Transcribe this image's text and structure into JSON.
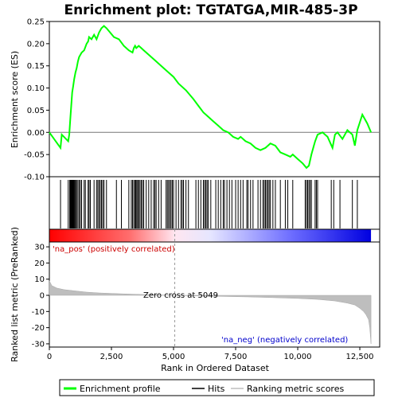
{
  "chart_data": {
    "type": "line",
    "title": "Enrichment plot: TGTATGA,MIR-485-3P",
    "top_panel": {
      "ylabel": "Enrichment score (ES)",
      "ylim": [
        -0.1,
        0.25
      ],
      "yticks": [
        -0.1,
        -0.05,
        0.0,
        0.05,
        0.1,
        0.15,
        0.2,
        0.25
      ],
      "ytick_labels": [
        "-0.10",
        "-0.05",
        "0.00",
        "0.05",
        "0.10",
        "0.15",
        "0.20",
        "0.25"
      ],
      "grid": false
    },
    "bottom_panel": {
      "ylabel": "Ranked list metric (PreRanked)",
      "ylim": [
        -32,
        33
      ],
      "yticks": [
        -30,
        -20,
        -10,
        0,
        10,
        20,
        30
      ],
      "ytick_labels": [
        "-30",
        "-20",
        "-10",
        "0",
        "10",
        "20",
        "30"
      ],
      "annotations": {
        "pos": "'na_pos' (positively correlated)",
        "neg": "'na_neg' (negatively correlated)",
        "zero_cross": "Zero cross at 5049"
      },
      "zero_cross": 5049
    },
    "xlabel": "Rank in Ordered Dataset",
    "xlim": [
      0,
      13300
    ],
    "xticks": [
      0,
      2500,
      5000,
      7500,
      10000,
      12500
    ],
    "xtick_labels": [
      "0",
      "2,500",
      "5,000",
      "7,500",
      "10,000",
      "12,500"
    ],
    "dataset_size": 12950,
    "series": [
      {
        "name": "Enrichment profile",
        "color": "#00ff00",
        "x": [
          0,
          450,
          500,
          760,
          800,
          850,
          880,
          920,
          960,
          1000,
          1050,
          1100,
          1150,
          1200,
          1300,
          1400,
          1500,
          1560,
          1600,
          1700,
          1800,
          1900,
          2000,
          2100,
          2200,
          2300,
          2450,
          2600,
          2800,
          3000,
          3200,
          3350,
          3400,
          3450,
          3500,
          3600,
          3700,
          3800,
          4000,
          4300,
          4600,
          4800,
          5000,
          5200,
          5500,
          5800,
          6000,
          6200,
          6400,
          6600,
          6800,
          7000,
          7200,
          7400,
          7600,
          7700,
          7900,
          8100,
          8300,
          8500,
          8700,
          8800,
          8900,
          9100,
          9300,
          9500,
          9700,
          9800,
          10000,
          10200,
          10350,
          10450,
          10550,
          10650,
          10700,
          10800,
          11000,
          11200,
          11400,
          11500,
          11600,
          11800,
          12000,
          12200,
          12300,
          12400,
          12600,
          12800,
          12950
        ],
        "y": [
          0.0,
          -0.035,
          -0.005,
          -0.02,
          -0.005,
          0.035,
          0.06,
          0.09,
          0.105,
          0.12,
          0.135,
          0.145,
          0.16,
          0.17,
          0.18,
          0.185,
          0.2,
          0.205,
          0.215,
          0.21,
          0.22,
          0.21,
          0.225,
          0.235,
          0.24,
          0.235,
          0.225,
          0.215,
          0.21,
          0.195,
          0.185,
          0.18,
          0.19,
          0.195,
          0.19,
          0.195,
          0.19,
          0.185,
          0.175,
          0.16,
          0.145,
          0.135,
          0.125,
          0.11,
          0.095,
          0.075,
          0.06,
          0.045,
          0.035,
          0.025,
          0.015,
          0.005,
          0.0,
          -0.01,
          -0.015,
          -0.01,
          -0.02,
          -0.025,
          -0.035,
          -0.04,
          -0.035,
          -0.03,
          -0.025,
          -0.03,
          -0.045,
          -0.05,
          -0.055,
          -0.05,
          -0.06,
          -0.07,
          -0.08,
          -0.075,
          -0.05,
          -0.03,
          -0.02,
          -0.005,
          0.0,
          -0.01,
          -0.035,
          -0.005,
          0.0,
          -0.015,
          0.005,
          -0.005,
          -0.03,
          0.005,
          0.04,
          0.02,
          0.0
        ]
      },
      {
        "name": "Hits",
        "color": "#000000",
        "positions": [
          450,
          760,
          820,
          850,
          880,
          900,
          920,
          940,
          960,
          980,
          1000,
          1030,
          1060,
          1100,
          1150,
          1200,
          1250,
          1300,
          1400,
          1450,
          1560,
          1600,
          1650,
          1800,
          1900,
          1950,
          2000,
          2050,
          2100,
          2150,
          2200,
          2300,
          2700,
          2900,
          3200,
          3300,
          3350,
          3400,
          3450,
          3480,
          3520,
          3560,
          3600,
          3650,
          3700,
          3750,
          3800,
          3900,
          4000,
          4100,
          4200,
          4250,
          4300,
          4400,
          4500,
          4700,
          4750,
          4800,
          4850,
          4900,
          4950,
          5000,
          5100,
          5200,
          5300,
          5350,
          5400,
          5500,
          5600,
          5900,
          6000,
          6100,
          6200,
          6250,
          6300,
          6350,
          6400,
          6500,
          6700,
          6800,
          6900,
          7000,
          7050,
          7150,
          7250,
          7350,
          7500,
          7600,
          7700,
          7800,
          7950,
          8000,
          8100,
          8200,
          8400,
          8500,
          8600,
          8650,
          8700,
          8750,
          8800,
          8850,
          8900,
          9000,
          9100,
          9300,
          9500,
          9600,
          9800,
          10300,
          10350,
          10400,
          10450,
          10500,
          10550,
          10700,
          10750,
          10800,
          11350,
          11450,
          11700,
          12200,
          12400
        ]
      },
      {
        "name": "Ranking metric scores",
        "color": "#bebebe",
        "x": [
          0,
          100,
          300,
          600,
          1000,
          1500,
          2000,
          3000,
          4000,
          5049,
          6000,
          7000,
          8000,
          9000,
          10000,
          10800,
          11500,
          12000,
          12300,
          12500,
          12650,
          12750,
          12850,
          12900,
          12950
        ],
        "y": [
          9,
          6,
          4.5,
          3.5,
          2.8,
          2.0,
          1.5,
          0.9,
          0.4,
          0.0,
          -0.4,
          -0.7,
          -1.0,
          -1.4,
          -1.9,
          -2.5,
          -3.5,
          -4.8,
          -6.0,
          -8.0,
          -10.0,
          -12.0,
          -15.0,
          -20.0,
          -30.0
        ]
      }
    ]
  },
  "legend": {
    "items": [
      {
        "label": "Enrichment profile",
        "color": "#00ff00"
      },
      {
        "label": "Hits",
        "color": "#000000"
      },
      {
        "label": "Ranking metric scores",
        "color": "#bebebe"
      }
    ]
  }
}
